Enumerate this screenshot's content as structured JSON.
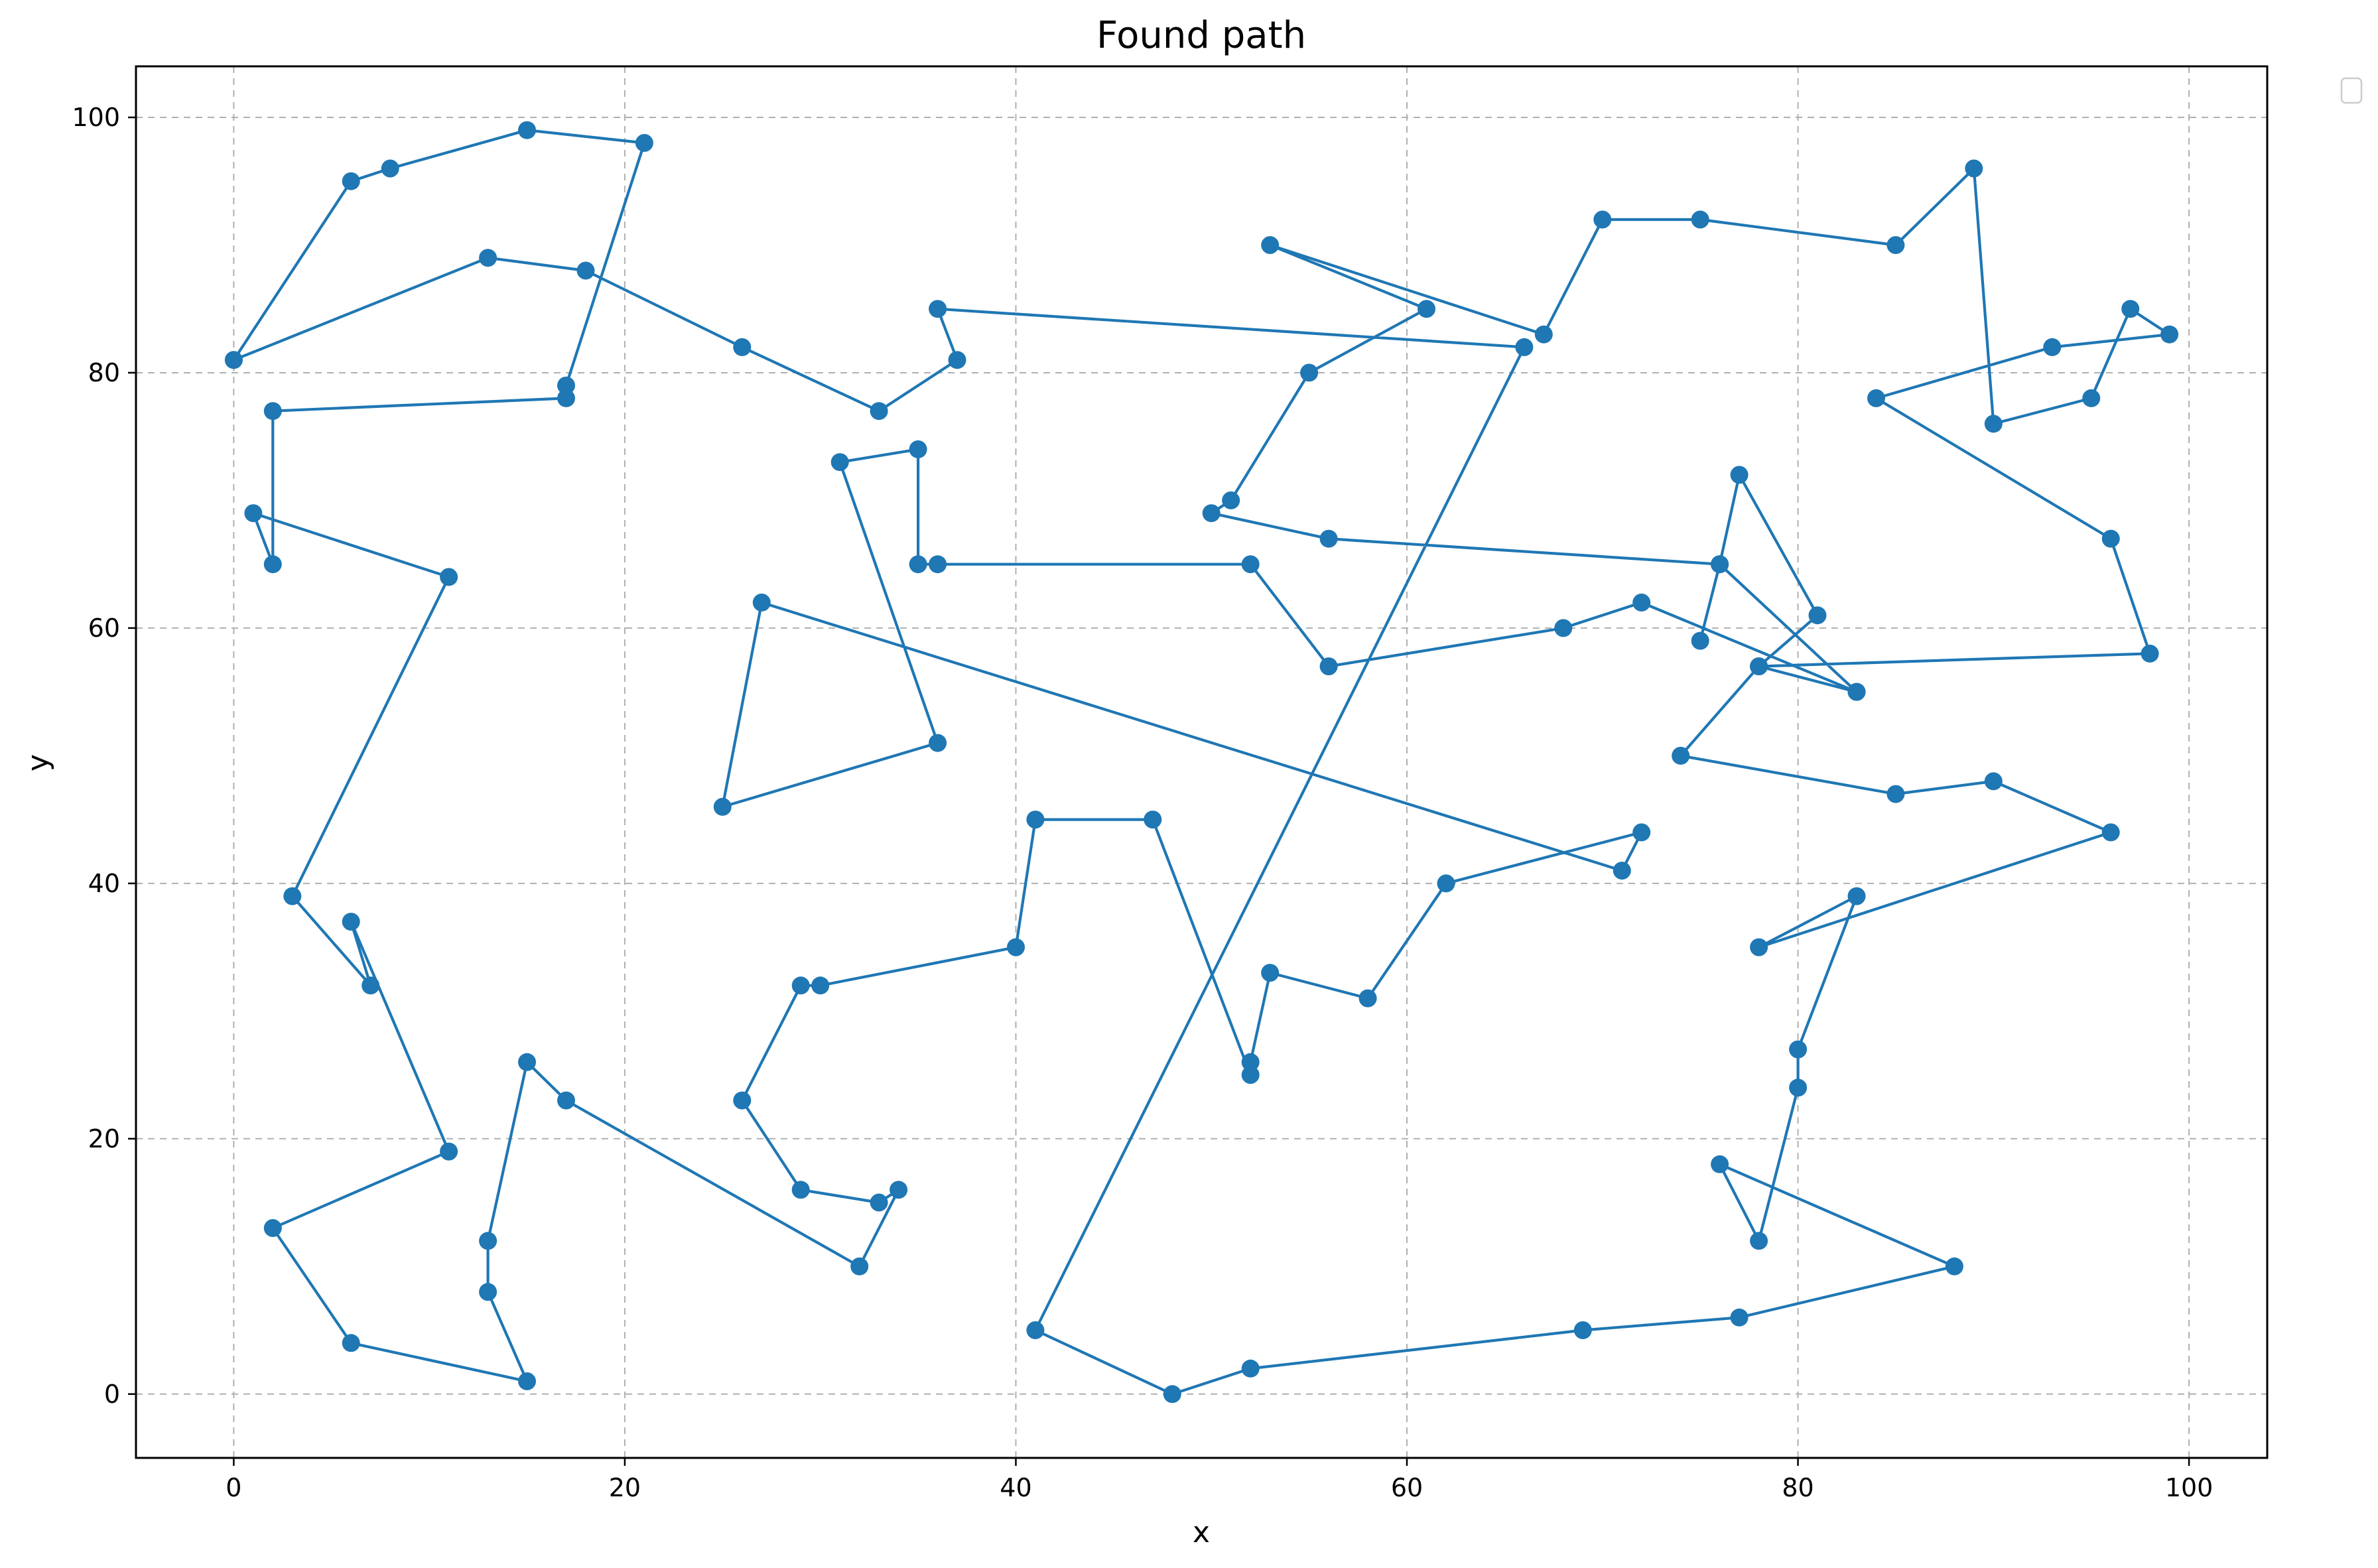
{
  "chart_data": {
    "type": "line",
    "title": "Found path",
    "xlabel": "x",
    "ylabel": "y",
    "xlim": [
      -5,
      104
    ],
    "ylim": [
      -5,
      104
    ],
    "xticks": [
      0,
      20,
      40,
      60,
      80,
      100
    ],
    "yticks": [
      0,
      20,
      40,
      60,
      80,
      100
    ],
    "grid": true,
    "legend": {
      "placement": "outside-top-right",
      "entries": []
    },
    "color": "#1f77b4",
    "markers": true,
    "series": [
      {
        "x": [
          0,
          6,
          8,
          15,
          21,
          17,
          17,
          2,
          2,
          1,
          11,
          3,
          7,
          6,
          11,
          2,
          6,
          15,
          13,
          13,
          15,
          17,
          32,
          34,
          33,
          29,
          26,
          29,
          30,
          40,
          41,
          47,
          52,
          52,
          53,
          58,
          62,
          72,
          71,
          27,
          25,
          36,
          31,
          35,
          35,
          36,
          52,
          56,
          68,
          72,
          83,
          78,
          81,
          77,
          76,
          75,
          76,
          83,
          76,
          56,
          50,
          51,
          55,
          61,
          53,
          67,
          70,
          75,
          85,
          89,
          90,
          95,
          97,
          99,
          93,
          84,
          96,
          98,
          78,
          74,
          85,
          90,
          96,
          78,
          83,
          80,
          80,
          78,
          76,
          88,
          77,
          69,
          52,
          48,
          41,
          66,
          36,
          37,
          33,
          26,
          18,
          13,
          0
        ],
        "y": [
          81,
          95,
          96,
          99,
          98,
          79,
          78,
          77,
          65,
          69,
          64,
          39,
          32,
          37,
          19,
          13,
          4,
          1,
          8,
          12,
          26,
          23,
          10,
          16,
          15,
          16,
          23,
          32,
          32,
          35,
          45,
          45,
          25,
          26,
          33,
          31,
          40,
          44,
          41,
          62,
          46,
          51,
          73,
          74,
          65,
          65,
          65,
          57,
          60,
          62,
          55,
          57,
          61,
          72,
          65,
          59,
          65,
          55,
          65,
          67,
          69,
          70,
          80,
          85,
          90,
          83,
          92,
          92,
          90,
          96,
          76,
          78,
          85,
          83,
          82,
          78,
          67,
          58,
          57,
          50,
          47,
          48,
          44,
          35,
          39,
          27,
          24,
          12,
          18,
          10,
          6,
          5,
          2,
          0,
          5,
          82,
          85,
          81,
          77,
          82,
          88,
          89,
          81
        ]
      }
    ]
  }
}
